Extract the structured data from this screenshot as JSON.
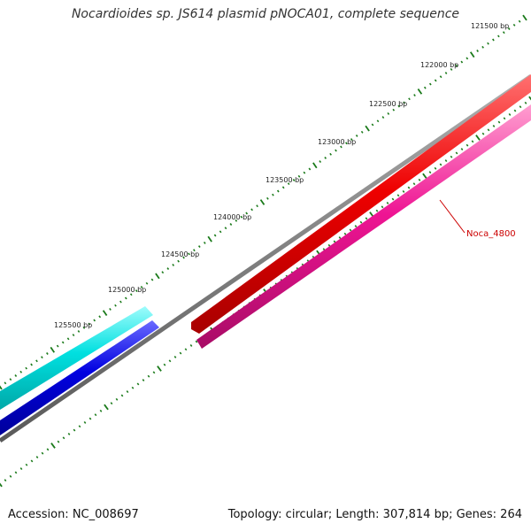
{
  "map": {
    "title": "Nocardioides sp. JS614 plasmid pNOCA01, complete sequence",
    "accession": "Accession: NC_008697",
    "stats": "Topology: circular; Length: 307,814 bp; Genes: 264"
  },
  "ruler": {
    "ticks": [
      "121500 bp",
      "122000 bp",
      "122500 bp",
      "123000 bp",
      "123500 bp",
      "124000 bp",
      "124500 bp",
      "125000 bp",
      "125500 bp"
    ],
    "tick_color": "#1a7a1a"
  },
  "features": [
    {
      "id": "cyan-cds",
      "strand": "forward",
      "color": "#00e6e6"
    },
    {
      "id": "blue-cds",
      "strand": "forward",
      "color": "#0000e0"
    },
    {
      "id": "red-cds",
      "strand": "forward",
      "color": "#ee0000"
    },
    {
      "id": "pink-cds",
      "strand": "reverse",
      "color": "#ee1493"
    }
  ],
  "backbone_color": "#7f7f7f",
  "gene_label": {
    "text": "Noca_4800",
    "color": "#cc0000"
  }
}
